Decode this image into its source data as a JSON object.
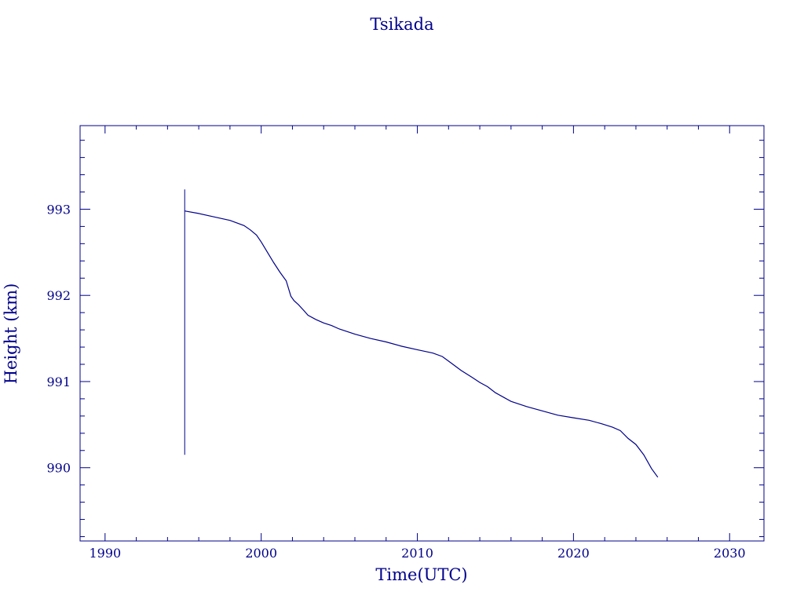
{
  "chart_data": {
    "type": "line",
    "title": "Tsikada",
    "xlabel": "Time(UTC)",
    "ylabel": "Height (km)",
    "xlim": [
      1988.4,
      2032.2
    ],
    "ylim": [
      989.15,
      993.97
    ],
    "x_ticks": [
      1990,
      2000,
      2010,
      2020,
      2030
    ],
    "x_tick_labels": [
      "1990",
      "2000",
      "2010",
      "2020",
      "2030"
    ],
    "y_ticks": [
      990,
      991,
      992,
      993
    ],
    "y_tick_labels": [
      "990",
      "991",
      "992",
      "993"
    ],
    "grid": false,
    "color": "#00008b",
    "spike": {
      "x": 1995.1,
      "y_low": 990.15,
      "y_high": 993.23
    },
    "series": [
      {
        "x": [
          1995.1,
          1996.0,
          1997.0,
          1998.0,
          1998.9,
          1999.3,
          1999.7,
          2000.0,
          2000.4,
          2000.8,
          2001.2,
          2001.6,
          2001.9,
          2002.1,
          2002.4,
          2002.7,
          2003.0,
          2003.5,
          2004.0,
          2004.5,
          2005.0,
          2006.0,
          2007.0,
          2008.0,
          2009.0,
          2010.0,
          2011.0,
          2011.6,
          2012.2,
          2012.8,
          2013.5,
          2014.0,
          2014.5,
          2015.0,
          2015.5,
          2016.0,
          2017.0,
          2018.0,
          2019.0,
          2020.0,
          2021.0,
          2021.8,
          2022.5,
          2023.0,
          2023.5,
          2024.0,
          2024.5,
          2025.0,
          2025.4
        ],
        "y": [
          992.98,
          992.95,
          992.91,
          992.87,
          992.81,
          992.76,
          992.7,
          992.62,
          992.5,
          992.38,
          992.27,
          992.17,
          991.99,
          991.94,
          991.89,
          991.83,
          991.77,
          991.72,
          991.68,
          991.65,
          991.61,
          991.55,
          991.5,
          991.46,
          991.41,
          991.37,
          991.33,
          991.29,
          991.21,
          991.13,
          991.05,
          990.99,
          990.94,
          990.87,
          990.82,
          990.77,
          990.71,
          990.66,
          990.61,
          990.58,
          990.55,
          990.51,
          990.47,
          990.43,
          990.34,
          990.27,
          990.15,
          989.99,
          989.89
        ]
      }
    ]
  }
}
